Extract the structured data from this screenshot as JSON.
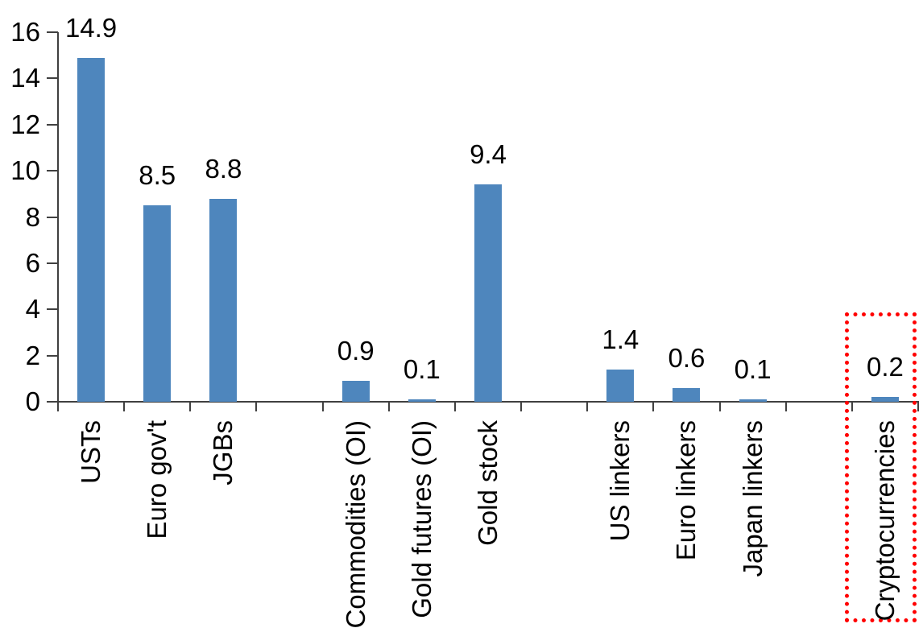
{
  "chart_data": {
    "type": "bar",
    "title": "",
    "xlabel": "",
    "ylabel": "",
    "ylim": [
      0,
      16
    ],
    "yticks": [
      0,
      2,
      4,
      6,
      8,
      10,
      12,
      14,
      16
    ],
    "grid": false,
    "legend": false,
    "categories": [
      "USTs",
      "Euro gov't",
      "JGBs",
      "Commodities (OI)",
      "Gold futures (OI)",
      "Gold stock",
      "US linkers",
      "Euro linkers",
      "Japan linkers",
      "Cryptocurrencies"
    ],
    "values": [
      14.9,
      8.5,
      8.8,
      0.9,
      0.1,
      9.4,
      1.4,
      0.6,
      0.1,
      0.2
    ],
    "value_labels": [
      "14.9",
      "8.5",
      "8.8",
      "0.9",
      "0.1",
      "9.4",
      "1.4",
      "0.6",
      "0.1",
      "0.2"
    ],
    "gap_after_indices": [
      2,
      5,
      8
    ],
    "highlighted_category": "Cryptocurrencies",
    "bar_color": "#4E86BD",
    "axis_color": "#404040",
    "text_color": "#000000",
    "highlight_box_color": "#FF0000"
  }
}
